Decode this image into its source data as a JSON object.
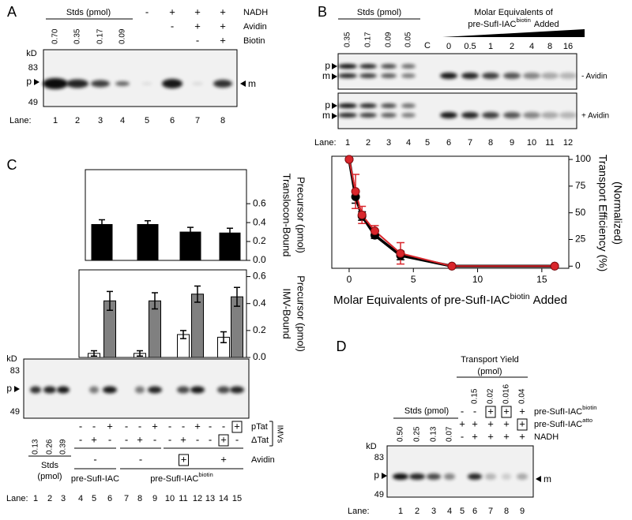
{
  "panels": {
    "A": {
      "label": "A",
      "kd": "kD",
      "kd_marks": [
        "83",
        "49"
      ],
      "header": "Stds (pmol)",
      "stds": [
        "0.70",
        "0.35",
        "0.17",
        "0.09"
      ],
      "rows": [
        {
          "name": {
            "text": "NADH"
          },
          "signs": [
            "-",
            "+",
            "+",
            "+"
          ]
        },
        {
          "name": {
            "text": "Avidin"
          },
          "signs": [
            "-",
            "+",
            "+"
          ]
        },
        {
          "name": {
            "text": "Biotin"
          },
          "signs": [
            "-",
            "+"
          ]
        }
      ],
      "p": "p",
      "m": "m",
      "lane_title": "Lane:",
      "lanes": [
        1,
        2,
        3,
        4,
        5,
        6,
        7,
        8
      ]
    },
    "B": {
      "label": "B",
      "header": "Stds (pmol)",
      "stds": [
        "0.35",
        "0.17",
        "0.09",
        "0.05"
      ],
      "control": "C",
      "title_line1": "Molar Equivalents of",
      "title_line2": {
        "text": "pre-SufI-IAC",
        "sup": "biotin",
        "tail": "Added"
      },
      "equivalents": [
        0,
        0.5,
        1,
        2,
        4,
        8,
        16
      ],
      "p": "p",
      "m": "m",
      "gel_labels": [
        "- Avidin",
        "+ Avidin"
      ],
      "lane_title": "Lane:",
      "lanes": [
        1,
        2,
        3,
        4,
        5,
        6,
        7,
        8,
        9,
        10,
        11,
        12
      ]
    },
    "C": {
      "label": "C",
      "kd": "kD",
      "kd_marks": [
        "83",
        "49"
      ],
      "p": "p",
      "stds": [
        "0.13",
        "0.26",
        "0.39"
      ],
      "stds_label": [
        "Stds",
        "(pmol)"
      ],
      "rows": [
        {
          "name": {
            "text": "pTat"
          },
          "signs": [
            "-",
            "-",
            "+",
            "-",
            "-",
            "+",
            "-",
            "-",
            "+",
            "-",
            "-",
            "+"
          ],
          "boxed": [
            11
          ]
        },
        {
          "name": {
            "text": "ΔTat"
          },
          "signs": [
            "-",
            "+",
            "-",
            "-",
            "+",
            "-",
            "-",
            "+",
            "-",
            "-",
            "+",
            "-"
          ],
          "boxed": [
            10
          ]
        }
      ],
      "imvs": "IMVs",
      "avidin": {
        "name": {
          "text": "Avidin"
        },
        "signs": [
          "-",
          "-",
          "+",
          "+"
        ],
        "boxed": [
          2
        ]
      },
      "constructs": [
        {
          "text": "pre-SufI-IAC"
        },
        {
          "text": "pre-SufI-IAC",
          "sup": "biotin"
        }
      ],
      "lane_title": "Lane:",
      "lanes": [
        1,
        2,
        3,
        4,
        5,
        6,
        7,
        8,
        9,
        10,
        11,
        12,
        13,
        14,
        15
      ]
    },
    "D": {
      "label": "D",
      "yield_title": [
        "Transport Yield",
        "(pmol)"
      ],
      "yields": [
        "0.15",
        "0.02",
        "0.016",
        "0.04"
      ],
      "header": "Stds (pmol)",
      "stds": [
        "0.50",
        "0.25",
        "0.13",
        "0.07"
      ],
      "rows": [
        {
          "name": {
            "text": "pre-SufI-IAC",
            "sup": "biotin"
          },
          "signs": [
            "-",
            "-",
            "+",
            "+",
            "+"
          ],
          "boxed": [
            2,
            3
          ]
        },
        {
          "name": {
            "text": "pre-SufI-IAC",
            "sup": "atto"
          },
          "signs": [
            "+",
            "+",
            "+",
            "+",
            "+"
          ],
          "boxed": [
            4
          ]
        },
        {
          "name": {
            "text": "NADH"
          },
          "signs": [
            "-",
            "+",
            "+",
            "+",
            "+"
          ]
        }
      ],
      "kd": "kD",
      "kd_marks": [
        "83",
        "49"
      ],
      "p": "p",
      "m": "m",
      "lane_title": "Lane:",
      "lanes": [
        1,
        2,
        3,
        4,
        5,
        6,
        7,
        8,
        9
      ]
    }
  },
  "chart_data": [
    {
      "type": "line",
      "x": [
        0,
        0.5,
        1,
        2,
        4,
        8,
        16
      ],
      "xlim": [
        -1.35,
        17.1
      ],
      "xticks": [
        0,
        5,
        10,
        15
      ],
      "ylim": [
        -2,
        103
      ],
      "yticks": [
        0,
        25,
        50,
        75,
        100
      ],
      "y_label": [
        "Transport Efficiency (%)",
        "(Normalized)"
      ],
      "x_label": {
        "text": "Molar Equivalents of pre-SufI-IAC",
        "sup": "biotin",
        "tail": "Added"
      },
      "series": [
        {
          "color": "#000000",
          "values": [
            100,
            65,
            47,
            29,
            10,
            0,
            0
          ],
          "errors": [
            0,
            6,
            4,
            3,
            4,
            0,
            0
          ]
        },
        {
          "color": "#d9262c",
          "values": [
            100,
            70,
            48,
            33,
            12,
            0,
            0
          ],
          "errors": [
            0,
            16,
            8,
            5,
            10,
            0,
            0
          ]
        }
      ]
    },
    {
      "type": "bar",
      "categories": [
        null,
        null,
        null,
        null
      ],
      "ylim": [
        0,
        0.96
      ],
      "yticks": [
        {
          "value": 0,
          "label": "0.0"
        },
        0.2,
        0.4,
        0.6
      ],
      "y_label": [
        "Translocon-Bound",
        "Precursor (pmol)"
      ],
      "series": [
        {
          "color": "#000000",
          "values": [
            0.38,
            0.38,
            0.3,
            0.29
          ],
          "errors": [
            0.05,
            0.04,
            0.05,
            0.05
          ]
        }
      ]
    },
    {
      "type": "bar",
      "categories": [
        null,
        null,
        null,
        null
      ],
      "ylim": [
        0,
        0.65
      ],
      "yticks": [
        {
          "value": 0,
          "label": "0.0"
        },
        0.2,
        0.4,
        0.6
      ],
      "y_label": [
        "IMV-Bound",
        "Precursor (pmol)"
      ],
      "series": [
        {
          "color": "#ffffff",
          "values": [
            0.03,
            0.03,
            0.17,
            0.15
          ],
          "errors": [
            0.02,
            0.02,
            0.03,
            0.04
          ]
        },
        {
          "color": "#808080",
          "values": [
            0.42,
            0.42,
            0.47,
            0.45
          ],
          "errors": [
            0.07,
            0.06,
            0.06,
            0.07
          ]
        }
      ]
    }
  ]
}
